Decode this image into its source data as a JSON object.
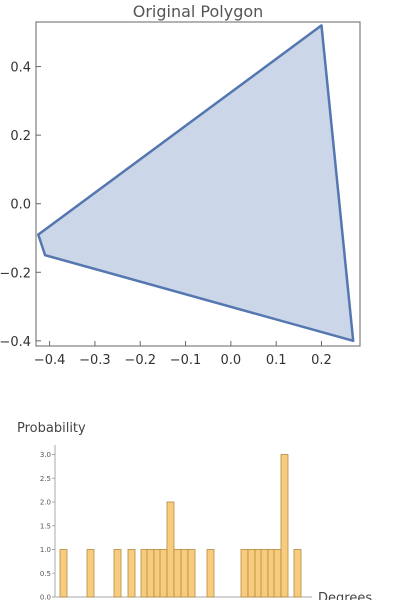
{
  "chart_data": [
    {
      "type": "polygon",
      "title": "Original Polygon",
      "xlabel": "",
      "ylabel": "",
      "xlim": [
        -0.43,
        0.285
      ],
      "ylim": [
        -0.415,
        0.53
      ],
      "x_ticks": [
        -0.4,
        -0.3,
        -0.2,
        -0.1,
        0.0,
        0.1,
        0.2
      ],
      "x_tick_labels": [
        "−0.4",
        "−0.3",
        "−0.2",
        "−0.1",
        "0.0",
        "0.1",
        "0.2"
      ],
      "y_ticks": [
        -0.4,
        -0.2,
        0.0,
        0.2,
        0.4
      ],
      "y_tick_labels": [
        "−0.4",
        "−0.2",
        "0.0",
        "0.2",
        "0.4"
      ],
      "points": [
        [
          0.2,
          0.52
        ],
        [
          0.27,
          -0.4
        ],
        [
          -0.41,
          -0.15
        ],
        [
          -0.425,
          -0.09
        ]
      ],
      "fill_color": "#cbd6e8",
      "stroke_color": "#5477b0",
      "grid": false
    },
    {
      "type": "histogram",
      "xlabel": "Degrees",
      "ylabel": "Probability",
      "ylim": [
        0,
        3.2
      ],
      "y_ticks": [
        0,
        0.5,
        1.0,
        1.5,
        2.0,
        2.5,
        3.0
      ],
      "y_tick_labels": [
        "0.0",
        "0.5",
        "1.0",
        "1.5",
        "2.0",
        "2.5",
        "3.0"
      ],
      "bar_values": [
        1,
        1,
        1,
        1,
        1,
        1,
        1,
        1,
        2,
        1,
        1,
        1,
        1,
        1,
        1,
        1,
        1,
        1,
        1,
        3,
        1
      ],
      "bar_color": "#f8cc7f",
      "bar_edge": "#b48a3c"
    }
  ]
}
